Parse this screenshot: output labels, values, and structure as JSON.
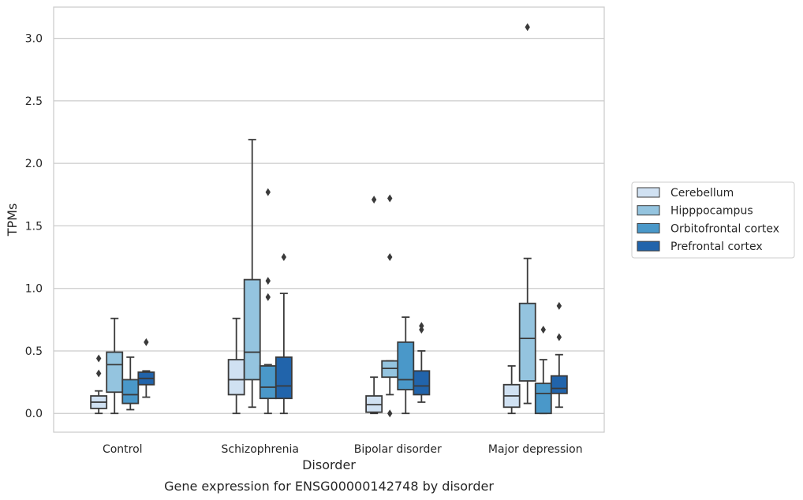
{
  "chart_data": {
    "type": "box",
    "title": "",
    "caption": "Gene expression for ENSG00000142748 by disorder",
    "xlabel": "Disorder",
    "ylabel": "TPMs",
    "ylim": [
      -0.15,
      3.25
    ],
    "yticks": [
      0.0,
      0.5,
      1.0,
      1.5,
      2.0,
      2.5,
      3.0
    ],
    "ytick_labels": [
      "0.0",
      "0.5",
      "1.0",
      "1.5",
      "2.0",
      "2.5",
      "3.0"
    ],
    "grid": "horizontal",
    "legend_position": "right",
    "categories": [
      "Control",
      "Schizophrenia",
      "Bipolar disorder",
      "Major depression"
    ],
    "series": [
      {
        "name": "Cerebellum",
        "color": "#d0e1f2",
        "boxes": [
          {
            "min": 0.0,
            "q1": 0.04,
            "median": 0.09,
            "q3": 0.14,
            "max": 0.18,
            "outliers": [
              0.32,
              0.44
            ]
          },
          {
            "min": 0.0,
            "q1": 0.15,
            "median": 0.27,
            "q3": 0.43,
            "max": 0.76,
            "outliers": []
          },
          {
            "min": 0.0,
            "q1": 0.01,
            "median": 0.07,
            "q3": 0.14,
            "max": 0.29,
            "outliers": [
              1.71
            ]
          },
          {
            "min": 0.0,
            "q1": 0.05,
            "median": 0.14,
            "q3": 0.23,
            "max": 0.38,
            "outliers": []
          }
        ]
      },
      {
        "name": "Hipppocampus",
        "color": "#94c4df",
        "boxes": [
          {
            "min": 0.0,
            "q1": 0.17,
            "median": 0.39,
            "q3": 0.49,
            "max": 0.76,
            "outliers": []
          },
          {
            "min": 0.05,
            "q1": 0.27,
            "median": 0.49,
            "q3": 1.07,
            "max": 2.19,
            "outliers": []
          },
          {
            "min": 0.15,
            "q1": 0.29,
            "median": 0.36,
            "q3": 0.42,
            "max": 0.42,
            "outliers": [
              0.0,
              1.25,
              1.72
            ]
          },
          {
            "min": 0.08,
            "q1": 0.26,
            "median": 0.6,
            "q3": 0.88,
            "max": 1.24,
            "outliers": [
              3.09
            ]
          }
        ]
      },
      {
        "name": "Orbitofrontal cortex",
        "color": "#4a98c9",
        "boxes": [
          {
            "min": 0.03,
            "q1": 0.08,
            "median": 0.15,
            "q3": 0.27,
            "max": 0.45,
            "outliers": []
          },
          {
            "min": 0.0,
            "q1": 0.12,
            "median": 0.21,
            "q3": 0.38,
            "max": 0.39,
            "outliers": [
              0.93,
              1.06,
              1.77
            ]
          },
          {
            "min": 0.0,
            "q1": 0.19,
            "median": 0.27,
            "q3": 0.57,
            "max": 0.77,
            "outliers": []
          },
          {
            "min": 0.0,
            "q1": 0.0,
            "median": 0.16,
            "q3": 0.24,
            "max": 0.43,
            "outliers": [
              0.67
            ]
          }
        ]
      },
      {
        "name": "Prefrontal cortex",
        "color": "#2164ab",
        "boxes": [
          {
            "min": 0.13,
            "q1": 0.23,
            "median": 0.28,
            "q3": 0.33,
            "max": 0.34,
            "outliers": [
              0.57
            ]
          },
          {
            "min": 0.0,
            "q1": 0.12,
            "median": 0.22,
            "q3": 0.45,
            "max": 0.96,
            "outliers": [
              1.25
            ]
          },
          {
            "min": 0.09,
            "q1": 0.15,
            "median": 0.22,
            "q3": 0.34,
            "max": 0.5,
            "outliers": [
              0.67,
              0.7
            ]
          },
          {
            "min": 0.05,
            "q1": 0.16,
            "median": 0.2,
            "q3": 0.3,
            "max": 0.47,
            "outliers": [
              0.61,
              0.86
            ]
          }
        ]
      }
    ]
  }
}
